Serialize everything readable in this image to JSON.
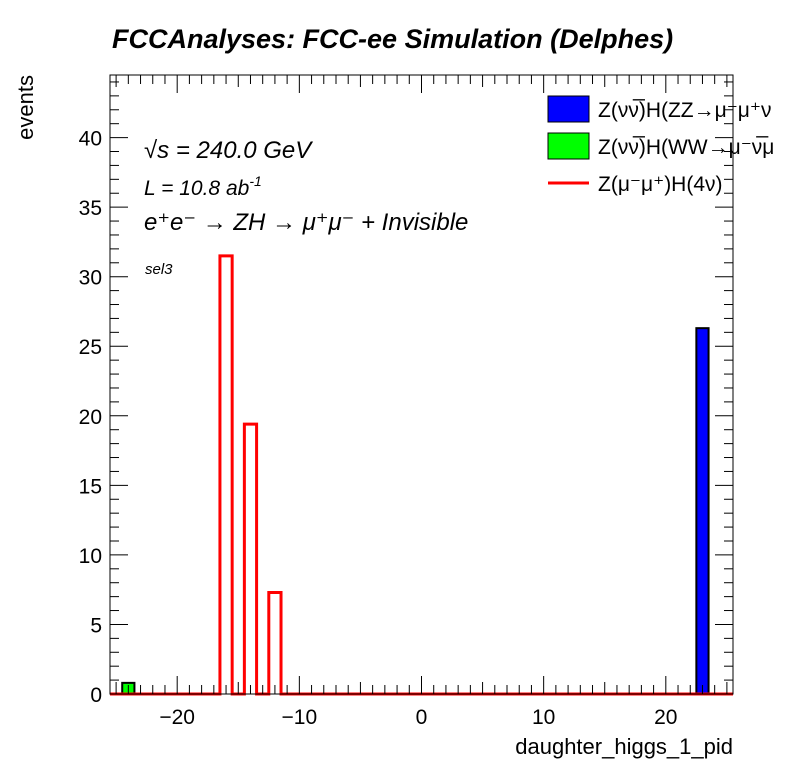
{
  "chart_data": {
    "type": "bar",
    "title": "FCCAnalyses: FCC-ee Simulation (Delphes)",
    "xlabel": "daughter_higgs_1_pid",
    "ylabel": "events",
    "xlim": [
      -25.5,
      25.5
    ],
    "ylim": [
      0,
      44.5
    ],
    "xticks": [
      -20,
      -10,
      0,
      10,
      20
    ],
    "yticks": [
      0,
      5,
      10,
      15,
      20,
      25,
      30,
      35,
      40
    ],
    "grid": false,
    "legend_position": "top-right",
    "annotations": {
      "sqrt_s": "√s = 240.0 GeV",
      "lumi": "L = 10.8 ab",
      "lumi_exp": "-1",
      "process": "e⁺e⁻ → ZH → μ⁺μ⁻ + Invisible",
      "selection": "sel3"
    },
    "series": [
      {
        "name": "Z(νν̅)H(ZZ→μ⁻μ⁺ν",
        "style": "filled",
        "color": "#0000ff",
        "bins": [
          {
            "x0": 22.5,
            "x1": 23.5,
            "value": 26.3
          }
        ]
      },
      {
        "name": "Z(νν̅)H(WW→μ⁻ν̅μ",
        "style": "filled",
        "color": "#00ff00",
        "bins": [
          {
            "x0": -24.5,
            "x1": -23.5,
            "value": 0.8
          }
        ]
      },
      {
        "name": "Z(μ⁻μ⁺)H(4ν)",
        "style": "line",
        "color": "#ff0000",
        "bins": [
          {
            "x0": -16.5,
            "x1": -15.5,
            "value": 31.5
          },
          {
            "x0": -14.5,
            "x1": -13.5,
            "value": 19.4
          },
          {
            "x0": -12.5,
            "x1": -11.5,
            "value": 7.3
          }
        ]
      }
    ]
  }
}
